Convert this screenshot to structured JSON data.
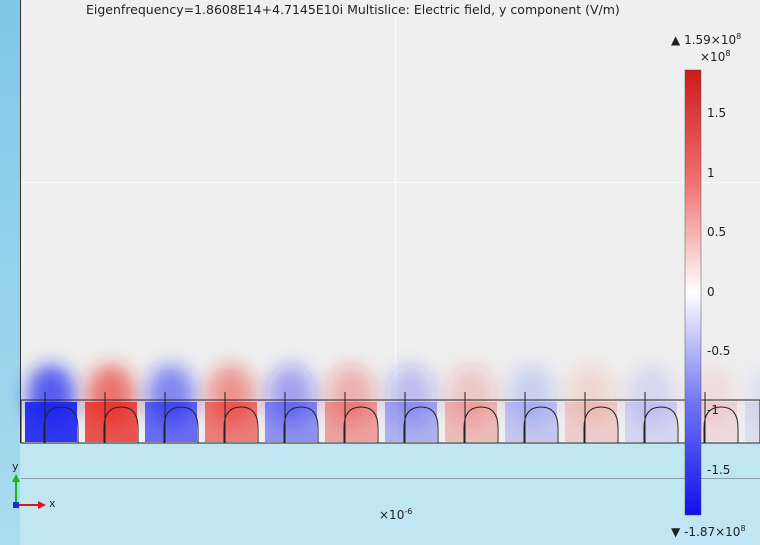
{
  "title": "Eigenfrequency=1.8608E14+4.7145E10i   Multislice: Electric field, y component (V/m)",
  "colorbar": {
    "max_label": "1.59×10",
    "max_exp": "8",
    "min_label": "-1.87×10",
    "min_exp": "8",
    "scale_label": "×10",
    "scale_exp": "8",
    "ticks": [
      {
        "label": "1.5",
        "value": 1.5
      },
      {
        "label": "1",
        "value": 1.0
      },
      {
        "label": "0.5",
        "value": 0.5
      },
      {
        "label": "0",
        "value": 0.0
      },
      {
        "label": "-0.5",
        "value": -0.5
      },
      {
        "label": "-1",
        "value": -1.0
      },
      {
        "label": "-1.5",
        "value": -1.5
      }
    ],
    "range": [
      -1.87,
      1.87
    ],
    "colors": {
      "top": "#e8231d",
      "mid": "#ffffff",
      "bottom": "#1a22f0"
    },
    "max_marker": "▲",
    "min_marker": "▼"
  },
  "x_axis_scale": {
    "label": "×10",
    "exp": "-6"
  },
  "axes_triad": {
    "y": "y",
    "x": "x",
    "y_color": "#17b817",
    "x_color": "#e0121c"
  },
  "field": {
    "cells": 13,
    "signs": [
      -1,
      1,
      -1,
      1,
      -1,
      1,
      -1,
      1,
      -1,
      1,
      -1,
      1,
      -1
    ],
    "amplitudes": [
      1.0,
      0.85,
      0.7,
      0.62,
      0.5,
      0.42,
      0.34,
      0.28,
      0.22,
      0.18,
      0.14,
      0.11,
      0.09
    ]
  }
}
